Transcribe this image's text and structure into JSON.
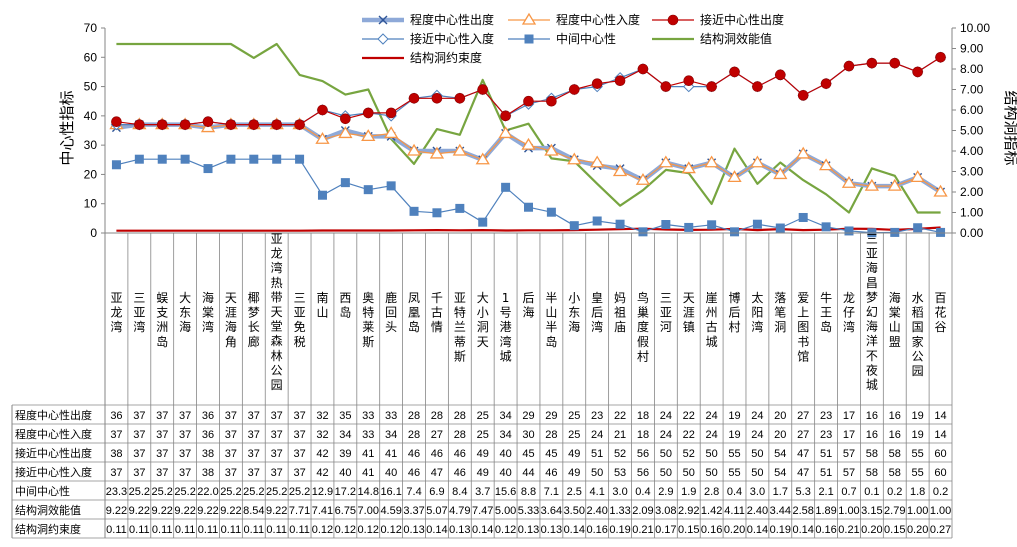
{
  "chart_data": {
    "type": "line",
    "ylabel_left": "中心性指标",
    "ylabel_right": "结构洞指标",
    "ylim_left": [
      0,
      70
    ],
    "ylim_right": [
      0,
      10
    ],
    "yticks_left": [
      "0",
      "10",
      "20",
      "30",
      "40",
      "50",
      "60",
      "70"
    ],
    "yticks_right": [
      "0.00",
      "1.00",
      "2.00",
      "3.00",
      "4.00",
      "5.00",
      "6.00",
      "7.00",
      "8.00",
      "9.00",
      "10.00"
    ],
    "categories": [
      "亚龙湾",
      "三亚湾",
      "蜈支洲岛",
      "大东海",
      "海棠湾",
      "天涯海角",
      "椰梦长廊",
      "亚龙湾热带天堂森林公园",
      "三亚免税",
      "南山",
      "西岛",
      "奥特莱斯",
      "鹿回头",
      "凤凰岛",
      "千古情",
      "亚特兰蒂斯",
      "大小洞天",
      "1号港湾城",
      "后海",
      "半山半岛",
      "小东海",
      "皇后湾",
      "妈祖庙",
      "鸟巢度假村",
      "三亚河",
      "天涯镇",
      "崖州古城",
      "博后村",
      "太阳湾",
      "落笔洞",
      "爱上图书馆",
      "牛王岛",
      "龙仔湾",
      "三亚海昌梦幻海洋不夜城",
      "海棠山盟",
      "水稻国家公园",
      "百花谷"
    ],
    "series": [
      {
        "name": "程度中心性出度",
        "axis": "left",
        "color": "#8ea9d8",
        "values": [
          36,
          37,
          37,
          37,
          36,
          37,
          37,
          37,
          37,
          32,
          35,
          33,
          33,
          28,
          28,
          28,
          25,
          34,
          29,
          29,
          25,
          23,
          22,
          18,
          24,
          22,
          24,
          19,
          24,
          20,
          27,
          23,
          17,
          16,
          16,
          19,
          14
        ],
        "cells": [
          "36",
          "37",
          "37",
          "37",
          "36",
          "37",
          "37",
          "37",
          "37",
          "32",
          "35",
          "33",
          "33",
          "28",
          "28",
          "28",
          "25",
          "34",
          "29",
          "29",
          "25",
          "23",
          "22",
          "18",
          "24",
          "22",
          "24",
          "19",
          "24",
          "20",
          "27",
          "23",
          "17",
          "16",
          "16",
          "19",
          "14"
        ]
      },
      {
        "name": "程度中心性入度",
        "axis": "left",
        "color": "#f79646",
        "values": [
          37,
          37,
          37,
          37,
          36,
          37,
          37,
          37,
          37,
          32,
          34,
          33,
          34,
          28,
          27,
          28,
          25,
          34,
          30,
          28,
          25,
          24,
          21,
          18,
          24,
          22,
          24,
          19,
          24,
          20,
          27,
          23,
          17,
          16,
          16,
          19,
          14
        ],
        "cells": [
          "37",
          "37",
          "37",
          "37",
          "36",
          "37",
          "37",
          "37",
          "37",
          "32",
          "34",
          "33",
          "34",
          "28",
          "27",
          "28",
          "25",
          "34",
          "30",
          "28",
          "25",
          "24",
          "21",
          "18",
          "24",
          "22",
          "24",
          "19",
          "24",
          "20",
          "27",
          "23",
          "17",
          "16",
          "16",
          "19",
          "14"
        ]
      },
      {
        "name": "接近中心性出度",
        "axis": "left",
        "color": "#c00000",
        "values": [
          38,
          37,
          37,
          37,
          38,
          37,
          37,
          37,
          37,
          42,
          39,
          41,
          41,
          46,
          46,
          46,
          49,
          40,
          45,
          45,
          49,
          51,
          52,
          56,
          50,
          52,
          50,
          55,
          50,
          54,
          47,
          51,
          57,
          58,
          58,
          55,
          60
        ],
        "cells": [
          "38",
          "37",
          "37",
          "37",
          "38",
          "37",
          "37",
          "37",
          "37",
          "42",
          "39",
          "41",
          "41",
          "46",
          "46",
          "46",
          "49",
          "40",
          "45",
          "45",
          "49",
          "51",
          "52",
          "56",
          "50",
          "52",
          "50",
          "55",
          "50",
          "54",
          "47",
          "51",
          "57",
          "58",
          "58",
          "55",
          "60"
        ]
      },
      {
        "name": "接近中心性入度",
        "axis": "left",
        "color": "#4f81bd",
        "values": [
          37,
          37,
          37,
          37,
          38,
          37,
          37,
          37,
          37,
          42,
          40,
          41,
          40,
          46,
          47,
          46,
          49,
          40,
          44,
          46,
          49,
          50,
          53,
          56,
          50,
          50,
          50,
          55,
          50,
          54,
          47,
          51,
          57,
          58,
          58,
          55,
          60
        ],
        "cells": [
          "37",
          "37",
          "37",
          "37",
          "38",
          "37",
          "37",
          "37",
          "37",
          "42",
          "40",
          "41",
          "40",
          "46",
          "47",
          "46",
          "49",
          "40",
          "44",
          "46",
          "49",
          "50",
          "53",
          "56",
          "50",
          "50",
          "50",
          "55",
          "50",
          "54",
          "47",
          "51",
          "57",
          "58",
          "58",
          "55",
          "60"
        ]
      },
      {
        "name": "中间中心性",
        "axis": "left",
        "color": "#4f81bd",
        "values": [
          23.3,
          25.2,
          25.2,
          25.2,
          22.0,
          25.2,
          25.2,
          25.2,
          25.2,
          12.9,
          17.2,
          14.8,
          16.1,
          7.4,
          6.9,
          8.4,
          3.7,
          15.6,
          8.8,
          7.1,
          2.5,
          4.1,
          3.0,
          0.4,
          2.9,
          1.9,
          2.8,
          0.4,
          3.0,
          1.7,
          5.3,
          2.1,
          0.7,
          0.1,
          0.2,
          1.8,
          0.2
        ],
        "cells": [
          "23.3",
          "25.2",
          "25.2",
          "25.2",
          "22.0",
          "25.2",
          "25.2",
          "25.2",
          "25.2",
          "12.9",
          "17.2",
          "14.8",
          "16.1",
          "7.4",
          "6.9",
          "8.4",
          "3.7",
          "15.6",
          "8.8",
          "7.1",
          "2.5",
          "4.1",
          "3.0",
          "0.4",
          "2.9",
          "1.9",
          "2.8",
          "0.4",
          "3.0",
          "1.7",
          "5.3",
          "2.1",
          "0.7",
          "0.1",
          "0.2",
          "1.8",
          "0.2"
        ]
      },
      {
        "name": "结构洞效能值",
        "axis": "right",
        "color": "#77a540",
        "values": [
          9.22,
          9.22,
          9.22,
          9.22,
          9.22,
          9.22,
          8.54,
          9.22,
          7.71,
          7.41,
          6.75,
          7.0,
          4.59,
          3.37,
          5.07,
          4.79,
          7.47,
          5.0,
          5.33,
          3.64,
          3.5,
          2.4,
          1.33,
          2.09,
          3.08,
          2.92,
          1.42,
          4.11,
          2.4,
          3.44,
          2.58,
          1.89,
          1.0,
          3.15,
          2.79,
          1.0,
          1.0
        ],
        "cells": [
          "9.22",
          "9.22",
          "9.22",
          "9.22",
          "9.22",
          "9.22",
          "8.54",
          "9.22",
          "7.71",
          "7.41",
          "6.75",
          "7.00",
          "4.59",
          "3.37",
          "5.07",
          "4.79",
          "7.47",
          "5.00",
          "5.33",
          "3.64",
          "3.50",
          "2.40",
          "1.33",
          "2.09",
          "3.08",
          "2.92",
          "1.42",
          "4.11",
          "2.40",
          "3.44",
          "2.58",
          "1.89",
          "1.00",
          "3.15",
          "2.79",
          "1.00",
          "1.00"
        ]
      },
      {
        "name": "结构洞约束度",
        "axis": "right",
        "color": "#c00000",
        "values": [
          0.11,
          0.11,
          0.11,
          0.11,
          0.11,
          0.11,
          0.11,
          0.11,
          0.11,
          0.12,
          0.12,
          0.12,
          0.12,
          0.13,
          0.14,
          0.13,
          0.14,
          0.12,
          0.13,
          0.13,
          0.14,
          0.16,
          0.19,
          0.21,
          0.17,
          0.15,
          0.16,
          0.2,
          0.14,
          0.19,
          0.14,
          0.16,
          0.21,
          0.2,
          0.15,
          0.2,
          0.27
        ],
        "cells": [
          "0.11",
          "0.11",
          "0.11",
          "0.11",
          "0.11",
          "0.11",
          "0.11",
          "0.11",
          "0.11",
          "0.12",
          "0.12",
          "0.12",
          "0.12",
          "0.13",
          "0.14",
          "0.13",
          "0.14",
          "0.12",
          "0.13",
          "0.13",
          "0.14",
          "0.16",
          "0.19",
          "0.21",
          "0.17",
          "0.15",
          "0.16",
          "0.20",
          "0.14",
          "0.19",
          "0.14",
          "0.16",
          "0.21",
          "0.20",
          "0.15",
          "0.20",
          "0.27"
        ]
      }
    ],
    "legend": "top"
  }
}
